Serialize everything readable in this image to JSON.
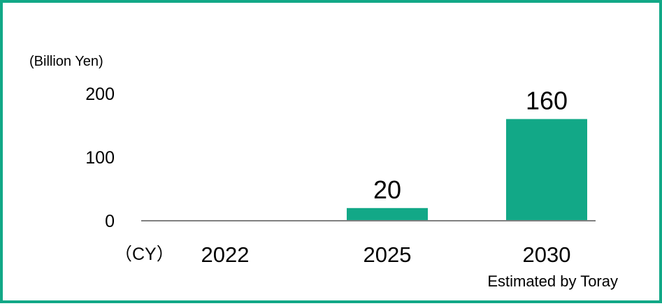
{
  "chart_data": {
    "type": "bar",
    "ylabel": "(Billion Yen)",
    "x_axis_suffix": "（CY）",
    "categories": [
      "2022",
      "2025",
      "2030"
    ],
    "values": [
      0,
      20,
      160
    ],
    "data_labels": [
      "",
      "20",
      "160"
    ],
    "ylim": [
      0,
      200
    ],
    "yticks": [
      0,
      100,
      200
    ],
    "grid": false,
    "bar_color": "#12a887",
    "axis_color": "#808080"
  },
  "source_note": "Estimated by Toray",
  "frame_color": "#12a887"
}
